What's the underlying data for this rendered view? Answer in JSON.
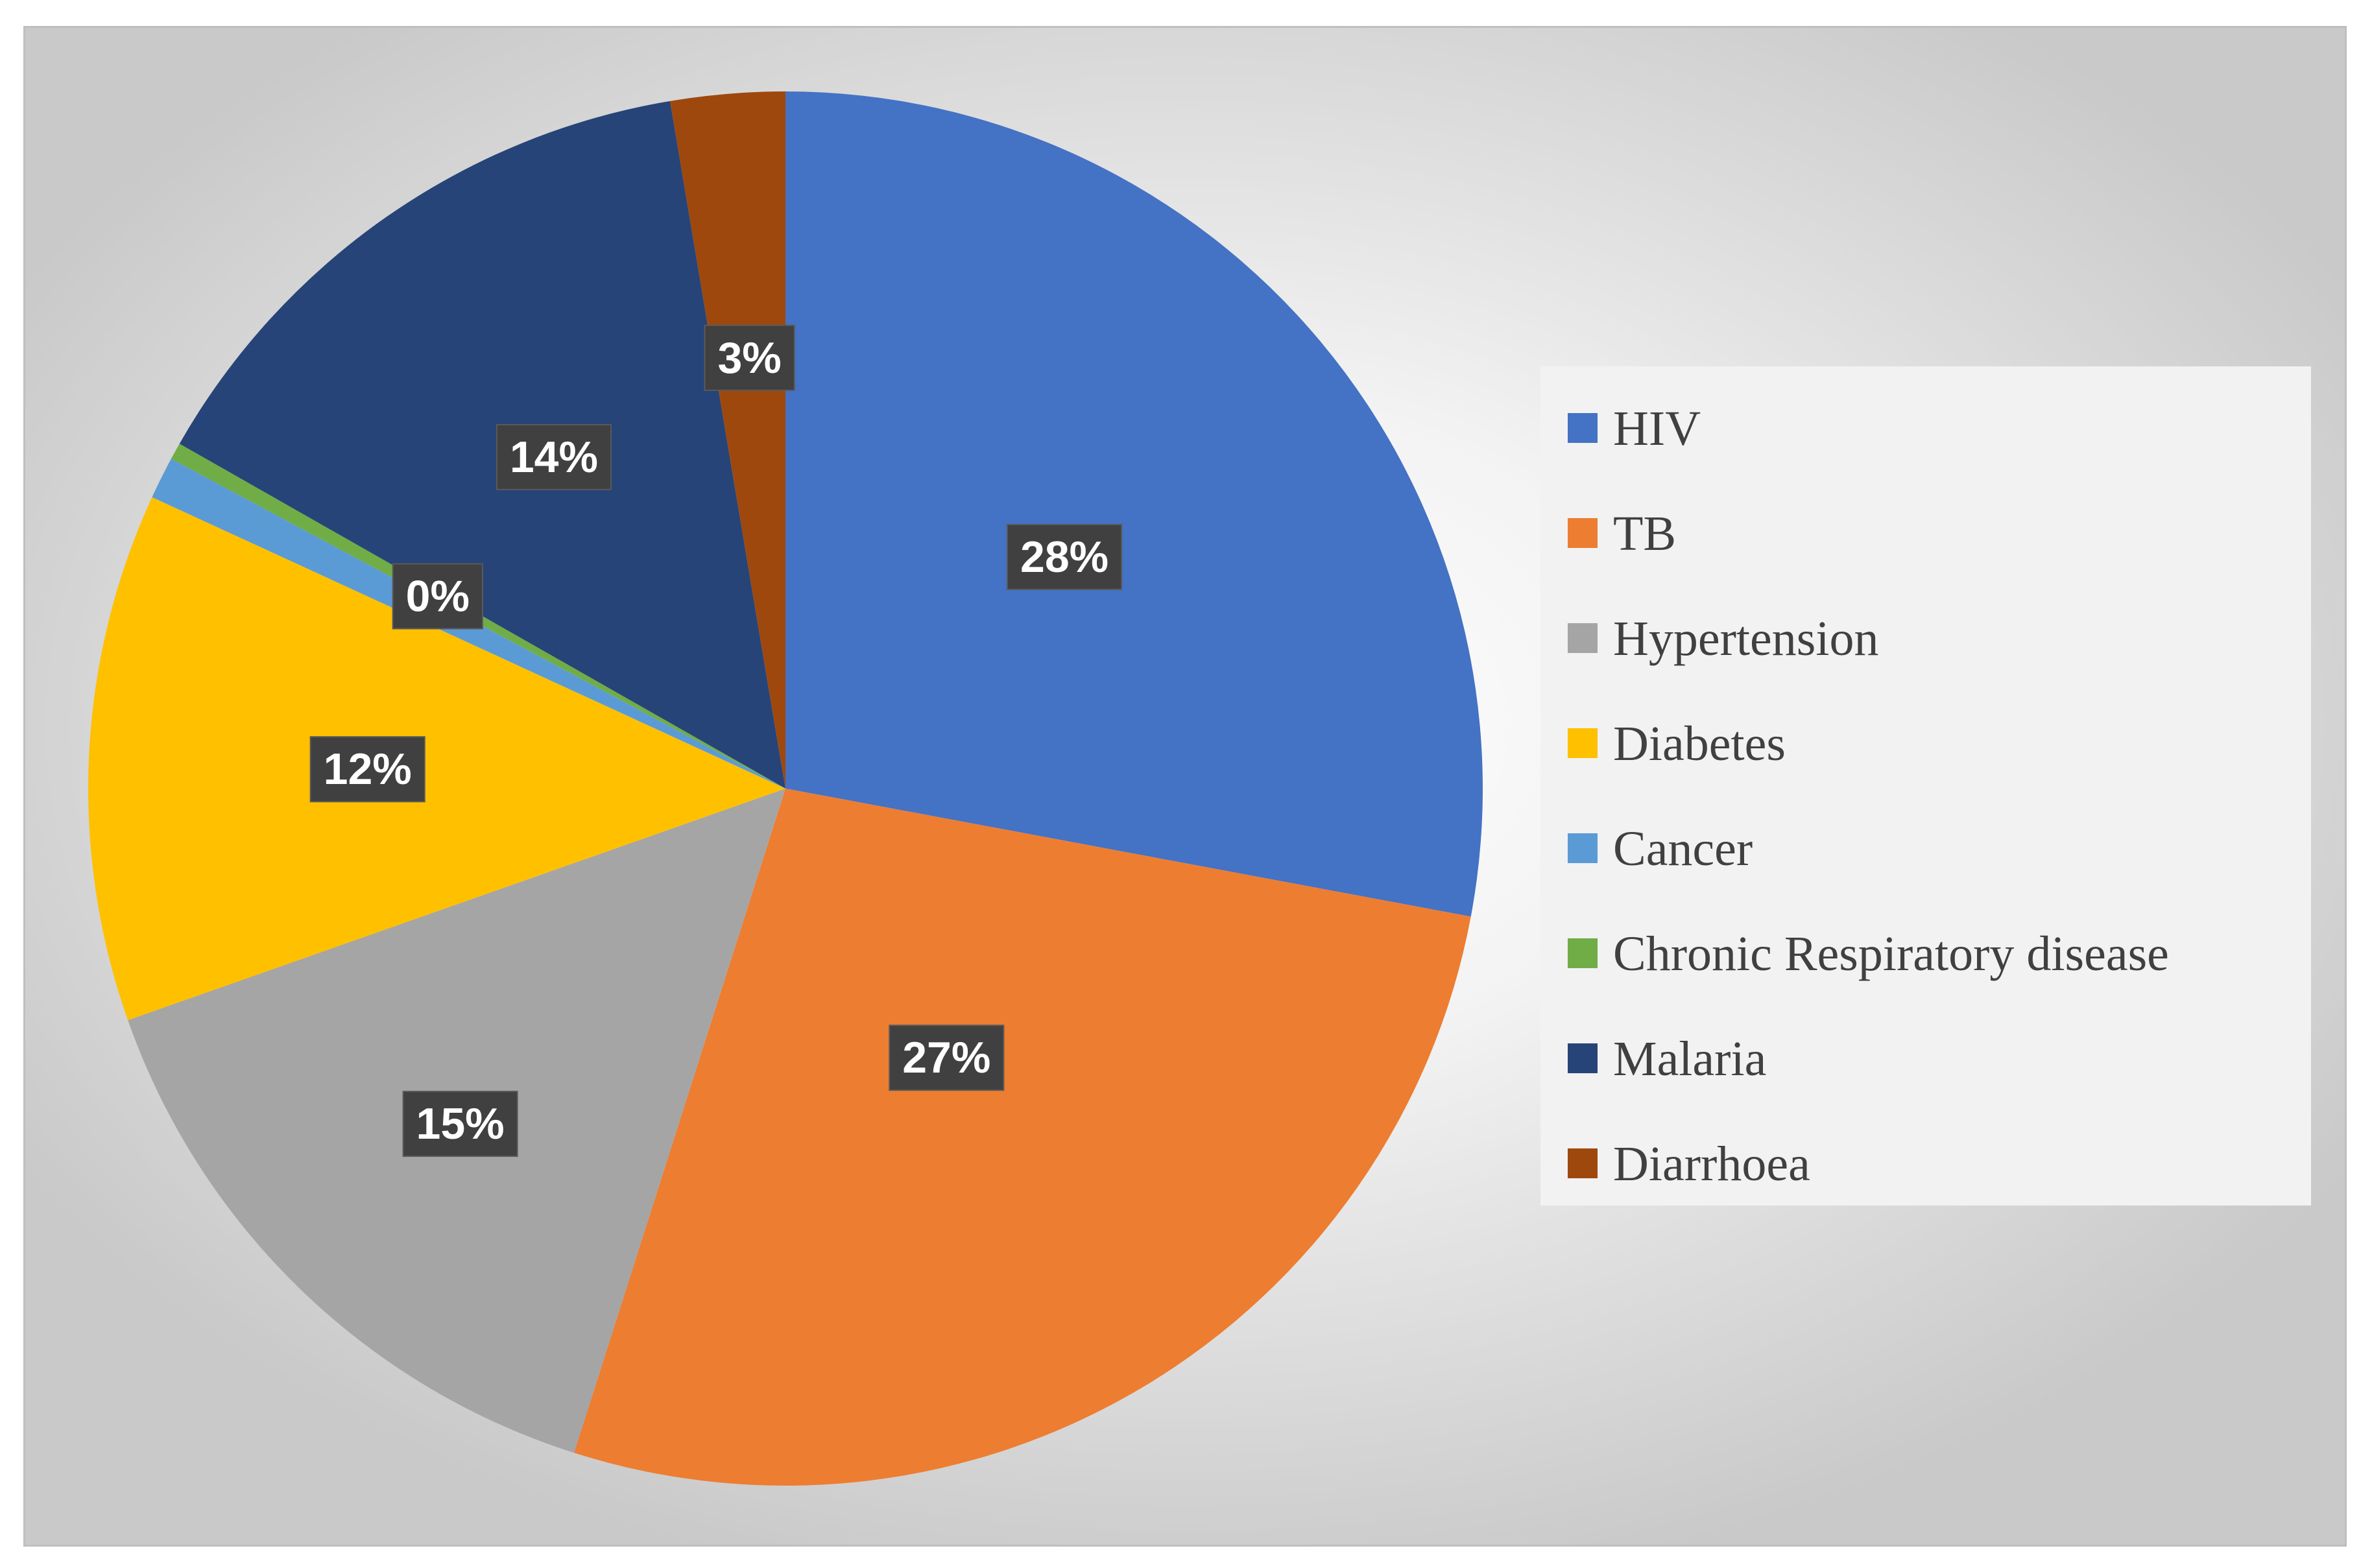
{
  "chart_data": {
    "type": "pie",
    "title": "",
    "slices": [
      {
        "name": "HIV",
        "value": 28.5,
        "label": "28%",
        "color": "#4472C4"
      },
      {
        "name": "TB",
        "value": 27.5,
        "label": "27%",
        "color": "#ED7D31"
      },
      {
        "name": "Hypertension",
        "value": 15.0,
        "label": "15%",
        "color": "#A5A5A5"
      },
      {
        "name": "Diabetes",
        "value": 12.5,
        "label": "12%",
        "color": "#FFC000"
      },
      {
        "name": "Cancer",
        "value": 1.0,
        "label": "",
        "color": "#5B9BD5"
      },
      {
        "name": "Chronic Respiratory disease",
        "value": 0.4,
        "label": "0%",
        "color": "#70AD47"
      },
      {
        "name": "Malaria",
        "value": 14.4,
        "label": "14%",
        "color": "#264478"
      },
      {
        "name": "Diarrhoea",
        "value": 2.7,
        "label": "3%",
        "color": "#9E480E"
      }
    ],
    "legend_position": "right"
  }
}
